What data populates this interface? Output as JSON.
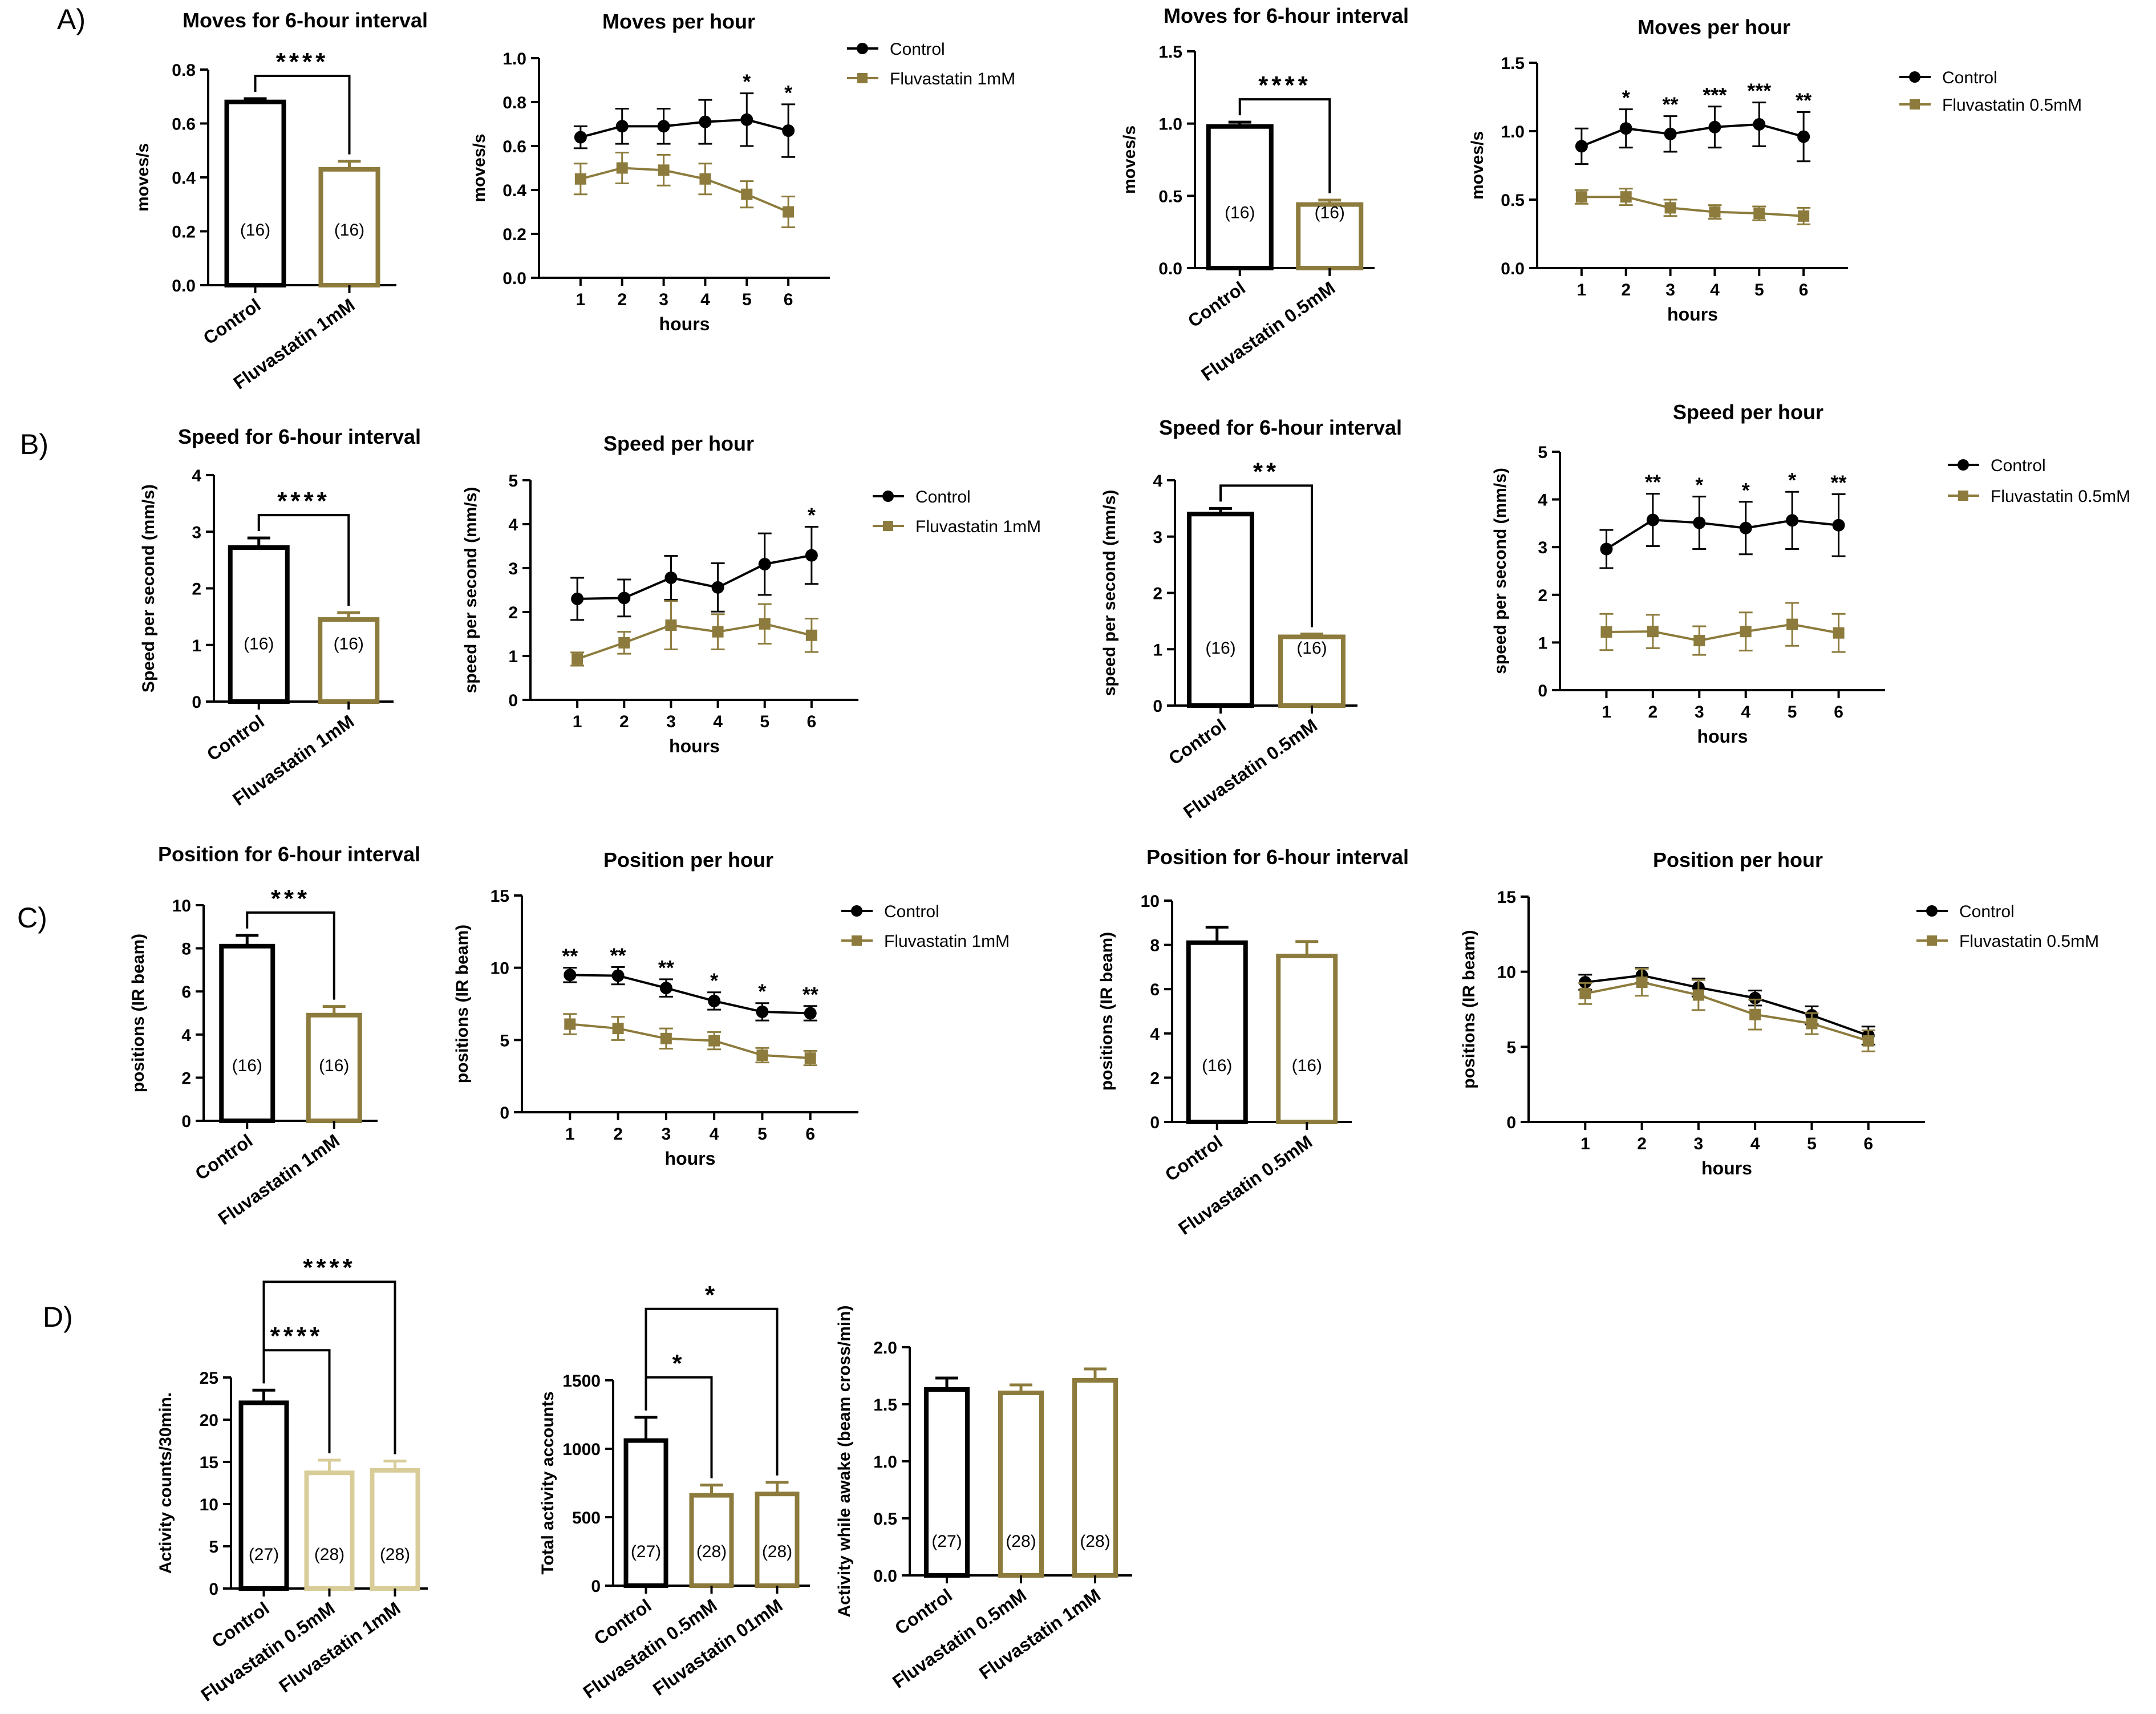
{
  "figure": {
    "panel_labels": [
      "A)",
      "B)",
      "C)",
      "D)"
    ],
    "colors": {
      "control": "#000000",
      "fluva": "#8c7b3c",
      "fluva_light": "#d8cc98"
    }
  },
  "chart_data": [
    {
      "id": "A1",
      "type": "bar",
      "title": "Moves for 6-hour interval",
      "ylabel": "moves/s",
      "ylim": [
        0,
        0.8
      ],
      "yticks": [
        "0.0",
        "0.2",
        "0.4",
        "0.6",
        "0.8"
      ],
      "categories": [
        "Control",
        "Fluvastatin 1mM"
      ],
      "values": [
        0.68,
        0.43
      ],
      "errors": [
        0.012,
        0.03
      ],
      "n_labels": [
        "(16)",
        "(16)"
      ],
      "significance": [
        {
          "from": 0,
          "to": 1,
          "label": "****"
        }
      ]
    },
    {
      "id": "A2",
      "type": "line",
      "title": "Moves per hour",
      "xlabel": "hours",
      "ylabel": "moves/s",
      "x": [
        1,
        2,
        3,
        4,
        5,
        6
      ],
      "ylim": [
        0,
        1.0
      ],
      "yticks": [
        "0.0",
        "0.2",
        "0.4",
        "0.6",
        "0.8",
        "1.0"
      ],
      "series": [
        {
          "name": "Control",
          "values": [
            0.64,
            0.69,
            0.69,
            0.71,
            0.72,
            0.67
          ],
          "errors": [
            0.05,
            0.08,
            0.08,
            0.1,
            0.12,
            0.12
          ]
        },
        {
          "name": "Fluvastatin 1mM",
          "values": [
            0.45,
            0.5,
            0.49,
            0.45,
            0.38,
            0.3
          ],
          "errors": [
            0.07,
            0.07,
            0.07,
            0.07,
            0.06,
            0.07
          ]
        }
      ],
      "stars": [
        "",
        "",
        "",
        "",
        "*",
        "*"
      ]
    },
    {
      "id": "A3",
      "type": "bar",
      "title": "Moves for 6-hour interval",
      "ylabel": "moves/s",
      "ylim": [
        0,
        1.5
      ],
      "yticks": [
        "0.0",
        "0.5",
        "1.0",
        "1.5"
      ],
      "categories": [
        "Control",
        "Fluvastatin 0.5mM"
      ],
      "values": [
        0.98,
        0.44
      ],
      "errors": [
        0.03,
        0.03
      ],
      "n_labels": [
        "(16)",
        "(16)"
      ],
      "significance": [
        {
          "from": 0,
          "to": 1,
          "label": "****"
        }
      ]
    },
    {
      "id": "A4",
      "type": "line",
      "title": "Moves per hour",
      "xlabel": "hours",
      "ylabel": "moves/s",
      "x": [
        1,
        2,
        3,
        4,
        5,
        6
      ],
      "ylim": [
        0,
        1.5
      ],
      "yticks": [
        "0.0",
        "0.5",
        "1.0",
        "1.5"
      ],
      "series": [
        {
          "name": "Control",
          "values": [
            0.89,
            1.02,
            0.98,
            1.03,
            1.05,
            0.96
          ],
          "errors": [
            0.13,
            0.14,
            0.13,
            0.15,
            0.16,
            0.18
          ]
        },
        {
          "name": "Fluvastatin 0.5mM",
          "values": [
            0.52,
            0.52,
            0.44,
            0.41,
            0.4,
            0.38
          ],
          "errors": [
            0.05,
            0.06,
            0.06,
            0.05,
            0.05,
            0.06
          ]
        }
      ],
      "stars": [
        "",
        "*",
        "**",
        "***",
        "***",
        "**"
      ]
    },
    {
      "id": "B1",
      "type": "bar",
      "title": "Speed for 6-hour interval",
      "ylabel": "Speed per second (mm/s)",
      "ylim": [
        0,
        4
      ],
      "yticks": [
        "0",
        "1",
        "2",
        "3",
        "4"
      ],
      "categories": [
        "Control",
        "Fluvastatin 1mM"
      ],
      "values": [
        2.72,
        1.45
      ],
      "errors": [
        0.17,
        0.12
      ],
      "n_labels": [
        "(16)",
        "(16)"
      ],
      "significance": [
        {
          "from": 0,
          "to": 1,
          "label": "****"
        }
      ]
    },
    {
      "id": "B2",
      "type": "line",
      "title": "Speed per hour",
      "xlabel": "hours",
      "ylabel": "speed per second (mm/s)",
      "x": [
        1,
        2,
        3,
        4,
        5,
        6
      ],
      "ylim": [
        0,
        5
      ],
      "yticks": [
        "0",
        "1",
        "2",
        "3",
        "4",
        "5"
      ],
      "series": [
        {
          "name": "Control",
          "values": [
            2.3,
            2.32,
            2.78,
            2.56,
            3.09,
            3.29
          ],
          "errors": [
            0.48,
            0.42,
            0.5,
            0.55,
            0.7,
            0.65
          ]
        },
        {
          "name": "Fluvastatin 1mM",
          "values": [
            0.93,
            1.3,
            1.7,
            1.55,
            1.73,
            1.47
          ],
          "errors": [
            0.15,
            0.25,
            0.55,
            0.4,
            0.45,
            0.38
          ]
        }
      ],
      "stars": [
        "",
        "",
        "",
        "",
        "",
        "*"
      ]
    },
    {
      "id": "B3",
      "type": "bar",
      "title": "Speed for 6-hour interval",
      "ylabel": "speed per second (mm/s)",
      "ylim": [
        0,
        4
      ],
      "yticks": [
        "0",
        "1",
        "2",
        "3",
        "4"
      ],
      "categories": [
        "Control",
        "Fluvastatin 0.5mM"
      ],
      "values": [
        3.4,
        1.22
      ],
      "errors": [
        0.1,
        0.05
      ],
      "n_labels": [
        "(16)",
        "(16)"
      ],
      "significance": [
        {
          "from": 0,
          "to": 1,
          "label": "**"
        }
      ]
    },
    {
      "id": "B4",
      "type": "line",
      "title": "Speed per hour",
      "xlabel": "hours",
      "ylabel": "speed per second (mm/s)",
      "x": [
        1,
        2,
        3,
        4,
        5,
        6
      ],
      "ylim": [
        0,
        5
      ],
      "yticks": [
        "0",
        "1",
        "2",
        "3",
        "4",
        "5"
      ],
      "series": [
        {
          "name": "Control",
          "values": [
            2.96,
            3.57,
            3.51,
            3.4,
            3.56,
            3.46
          ],
          "errors": [
            0.4,
            0.55,
            0.55,
            0.55,
            0.6,
            0.65
          ]
        },
        {
          "name": "Fluvastatin 0.5mM",
          "values": [
            1.22,
            1.23,
            1.04,
            1.23,
            1.38,
            1.2
          ],
          "errors": [
            0.38,
            0.35,
            0.3,
            0.4,
            0.45,
            0.4
          ]
        }
      ],
      "stars": [
        "",
        "**",
        "*",
        "*",
        "*",
        "**"
      ]
    },
    {
      "id": "C1",
      "type": "bar",
      "title": "Position for 6-hour interval",
      "ylabel": "positions (IR beam)",
      "ylim": [
        0,
        10
      ],
      "yticks": [
        "0",
        "2",
        "4",
        "6",
        "8",
        "10"
      ],
      "categories": [
        "Control",
        "Fluvastatin 1mM"
      ],
      "values": [
        8.1,
        4.9
      ],
      "errors": [
        0.5,
        0.4
      ],
      "n_labels": [
        "(16)",
        "(16)"
      ],
      "significance": [
        {
          "from": 0,
          "to": 1,
          "label": "***"
        }
      ]
    },
    {
      "id": "C2",
      "type": "line",
      "title": "Position per hour",
      "xlabel": "hours",
      "ylabel": "positions (IR beam)",
      "x": [
        1,
        2,
        3,
        4,
        5,
        6
      ],
      "ylim": [
        0,
        15
      ],
      "yticks": [
        "0",
        "5",
        "10",
        "15"
      ],
      "series": [
        {
          "name": "Control",
          "values": [
            9.5,
            9.45,
            8.6,
            7.7,
            6.95,
            6.85
          ],
          "errors": [
            0.5,
            0.6,
            0.6,
            0.6,
            0.6,
            0.5
          ]
        },
        {
          "name": "Fluvastatin 1mM",
          "values": [
            6.1,
            5.8,
            5.1,
            4.95,
            3.95,
            3.75
          ],
          "errors": [
            0.7,
            0.8,
            0.7,
            0.6,
            0.5,
            0.5
          ]
        }
      ],
      "stars": [
        "**",
        "**",
        "**",
        "*",
        "*",
        "**"
      ]
    },
    {
      "id": "C3",
      "type": "bar",
      "title": "Position for 6-hour interval",
      "ylabel": "positions (IR beam)",
      "ylim": [
        0,
        10
      ],
      "yticks": [
        "0",
        "2",
        "4",
        "6",
        "8",
        "10"
      ],
      "categories": [
        "Control",
        "Fluvastatin 0.5mM"
      ],
      "values": [
        8.1,
        7.5
      ],
      "errors": [
        0.7,
        0.65
      ],
      "n_labels": [
        "(16)",
        "(16)"
      ],
      "significance": []
    },
    {
      "id": "C4",
      "type": "line",
      "title": "Position per hour",
      "xlabel": "hours",
      "ylabel": "positions (IR beam)",
      "x": [
        1,
        2,
        3,
        4,
        5,
        6
      ],
      "ylim": [
        0,
        15
      ],
      "yticks": [
        "0",
        "5",
        "10",
        "15"
      ],
      "series": [
        {
          "name": "Control",
          "values": [
            9.3,
            9.75,
            8.95,
            8.25,
            7.1,
            5.75
          ],
          "errors": [
            0.5,
            0.5,
            0.6,
            0.5,
            0.6,
            0.6
          ]
        },
        {
          "name": "Fluvastatin 0.5mM",
          "values": [
            8.55,
            9.3,
            8.45,
            7.15,
            6.55,
            5.4
          ],
          "errors": [
            0.7,
            0.9,
            1.0,
            1.0,
            0.7,
            0.7
          ]
        }
      ],
      "stars": [
        "",
        "",
        "",
        "",
        "",
        ""
      ]
    },
    {
      "id": "D1",
      "type": "bar",
      "title": "",
      "ylabel": "Activity counts/30min.",
      "ylim": [
        0,
        25
      ],
      "yticks": [
        "0",
        "5",
        "10",
        "15",
        "20",
        "25"
      ],
      "categories": [
        "Control",
        "Fluvastatin 0.5mM",
        "Fluvastatin 1mM"
      ],
      "values": [
        22,
        13.7,
        14
      ],
      "errors": [
        1.5,
        1.5,
        1.1
      ],
      "n_labels": [
        "(27)",
        "(28)",
        "(28)"
      ],
      "significance": [
        {
          "from": 0,
          "to": 1,
          "label": "****"
        },
        {
          "from": 0,
          "to": 2,
          "label": "****"
        }
      ]
    },
    {
      "id": "D2",
      "type": "bar",
      "title": "",
      "ylabel": "Total activity accounts",
      "ylim": [
        0,
        1500
      ],
      "yticks": [
        "0",
        "500",
        "1000",
        "1500"
      ],
      "categories": [
        "Control",
        "Fluvastatin 0.5mM",
        "Fluvastatin 01mM"
      ],
      "values": [
        1060,
        660,
        670
      ],
      "errors": [
        170,
        75,
        85
      ],
      "n_labels": [
        "(27)",
        "(28)",
        "(28)"
      ],
      "significance": [
        {
          "from": 0,
          "to": 1,
          "label": "*"
        },
        {
          "from": 0,
          "to": 2,
          "label": "*"
        }
      ]
    },
    {
      "id": "D3",
      "type": "bar",
      "title": "",
      "ylabel": "Activity while awake (beam cross/min)",
      "ylim": [
        0,
        2.0
      ],
      "yticks": [
        "0.0",
        "0.5",
        "1.0",
        "1.5",
        "2.0"
      ],
      "categories": [
        "Control",
        "Fluvastatin 0.5mM",
        "Fluvastatin 1mM"
      ],
      "values": [
        1.63,
        1.6,
        1.71
      ],
      "errors": [
        0.1,
        0.07,
        0.1
      ],
      "n_labels": [
        "(27)",
        "(28)",
        "(28)"
      ],
      "significance": []
    }
  ]
}
